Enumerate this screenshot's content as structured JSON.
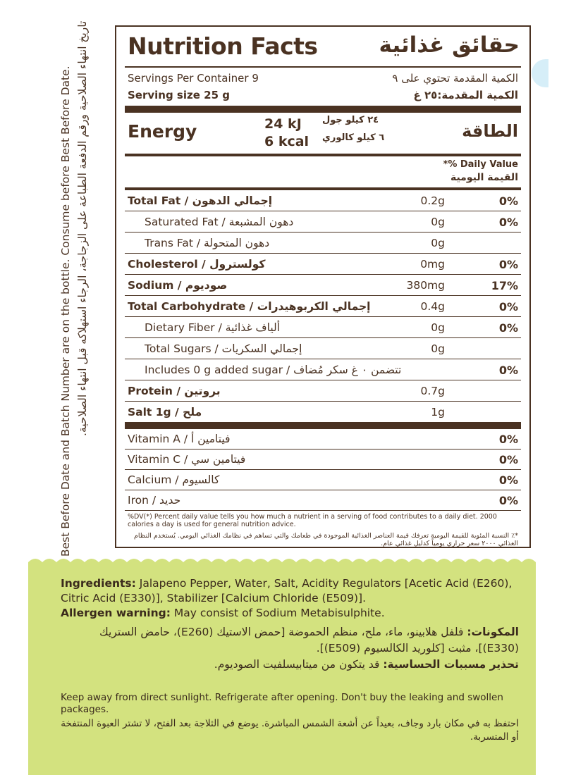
{
  "side": {
    "en": "Best Before Date and Batch Number are on the bottle. Consume before Best Before Date.",
    "ar": "تاريخ انتهاء الصلاحية ورقم الدفعة الطباعة على الزجاجة، الرجاء استهلاكه قبل انتهاء الصلاحية."
  },
  "panel": {
    "title_en": "Nutrition Facts",
    "title_ar": "حقائق غذائية",
    "servings_en": "Servings Per Container 9",
    "servings_ar": "الكمية المقدمة تحتوي على ٩",
    "serving_size_en": "Serving size  25 g",
    "serving_size_ar": "الكمية المقدمة:٢٥ غ",
    "energy": {
      "label_en": "Energy",
      "kj": "24 kJ",
      "kcal": "6 kcal",
      "kj_ar": "٢٤ كيلو جول",
      "kcal_ar": "٦ كيلو كالوري",
      "label_ar": "الطاقة"
    },
    "dv_header_en": "*% Daily Value",
    "dv_header_ar": "القيمة اليومية",
    "nutrients": [
      {
        "name": "Total Fat / إجمالي الدهون",
        "amount": "0.2g",
        "dv": "0%"
      },
      {
        "name": "Saturated Fat / دهون المشبعة",
        "amount": "0g",
        "dv": "0%"
      },
      {
        "name": "Trans Fat / دهون المتحولة",
        "amount": "0g",
        "dv": ""
      },
      {
        "name": "Cholesterol / كولسترول",
        "amount": "0mg",
        "dv": "0%"
      },
      {
        "name": "Sodium / صوديوم",
        "amount": "380mg",
        "dv": "17%"
      },
      {
        "name": "Total Carbohydrate / إجمالي الكربوهيدرات",
        "amount": "0.4g",
        "dv": "0%"
      },
      {
        "name": "Dietary Fiber / ألياف غذائية",
        "amount": "0g",
        "dv": "0%"
      },
      {
        "name": "Total Sugars / إجمالي السكريات",
        "amount": "0g",
        "dv": ""
      },
      {
        "name": "Includes 0 g added sugar / تتضمن ٠ غ سكر مُضاف",
        "amount": "",
        "dv": "0%"
      },
      {
        "name": "Protein / بروتين",
        "amount": "0.7g",
        "dv": ""
      },
      {
        "name": "Salt 1g / ملح",
        "amount": "1g",
        "dv": ""
      }
    ],
    "vitamins": [
      {
        "name": "Vitamin A / فيتامين أ",
        "dv": "0%"
      },
      {
        "name": "Vitamin C / فيتامين سي",
        "dv": "0%"
      },
      {
        "name": "Calcium / كالسيوم",
        "dv": "0%"
      },
      {
        "name": "Iron / حديد",
        "dv": "0%"
      }
    ],
    "footnote_en": "%DV(*) Percent daily value tells you how much a nutrient in a serving of food contributes to a daily diet. 2000 calories a day is used for general nutrition advice.",
    "footnote_ar": "*٪ النسبة المئوية للقيمة اليومية تعرفك قيمة العناصر الغذائية الموجودة في طعامك والتي تساهم في نظامك الغذائي اليومي. يُستخدم النظام الغذائي ٢٠٠٠ سعر حراري يومياً كدليل غذائي عام."
  },
  "ingredients": {
    "label_en": "Ingredients:",
    "text_en": " Jalapeno Pepper, Water, Salt, Acidity Regulators [Acetic Acid (E260), Citric Acid (E330)], Stabilizer [Calcium Chloride (E509)].",
    "allergen_label_en": "Allergen warning:",
    "allergen_text_en": " May consist of Sodium Metabisulphite.",
    "label_ar": "المكونات:",
    "text_ar": " فلفل هلابينو، ماء، ملح، منظم الحموضة [حمض الاستيك (E260)، حامض الستريك (E330)]، مثبت [كلوريد الكالسيوم (E509)].",
    "allergen_label_ar": "تحذير مسببات الحساسية:",
    "allergen_text_ar": " قد يتكون من ميتابيسلفيت الصوديوم."
  },
  "storage": {
    "en": "Keep away from direct sunlight. Refrigerate after opening. Don't buy the leaking and swollen packages.",
    "ar": "احتفظ به في مكان بارد وجاف، بعيداً عن أشعة الشمس المباشرة. يوضع في الثلاجة بعد الفتح، لا تشتر العبوة المنتفخة أو المتسربة."
  },
  "colors": {
    "brown": "#4a3222",
    "green": "#d3e27f",
    "light_blue": "#d6eef8"
  }
}
